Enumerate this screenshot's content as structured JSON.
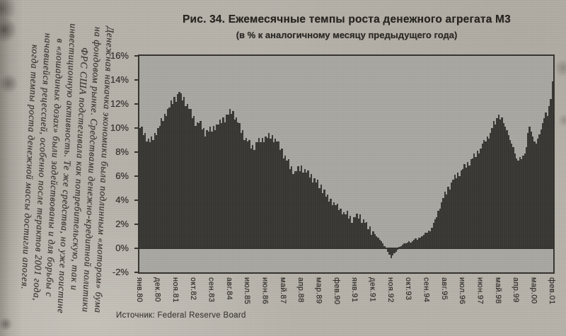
{
  "page": {
    "margin_note_lines": [
      "Денежная накачка экономики была подлинным «мотором» бума",
      "на фондовом рынке. Средствами денежно-кредитной политики",
      "ФРС США подстегивала как потребительскую, так и",
      "инвестиционную активность. Те же средства, но уже поистине",
      "в «лошадиных дозах» были задействованы и для борьбы с",
      "начавшейся рецессией, особенно после терактов 2001 года,",
      "когда темпы роста денежной массы достигли апогея."
    ],
    "source_note": "Источник: Federal Reserve Board"
  },
  "chart_data": {
    "type": "bar",
    "title": "Рис. 34. Ежемесячные темпы роста денежного агрегата М3",
    "subtitle": "(в % к аналогичному месяцу предыдущего года)",
    "source": "Federal Reserve Board",
    "x_range": [
      "янв.80",
      "фев.01"
    ],
    "months_total": 254,
    "ylim": [
      -2,
      16
    ],
    "grid": false,
    "legend": "none",
    "y_tick_labels": [
      "16%",
      "14%",
      "12%",
      "10%",
      "8%",
      "6%",
      "4%",
      "2%",
      "0%",
      "-2%"
    ],
    "x_tick_labels": [
      "янв.80",
      "дек.80",
      "ноя.81",
      "окт.82",
      "сен.83",
      "авг.84",
      "июл.85",
      "июн.86",
      "май.87",
      "апр.88",
      "мар.89",
      "фев.90",
      "янв.91",
      "дек.91",
      "ноя.92",
      "окт.93",
      "сен.94",
      "авг.95",
      "июл.96",
      "июн.97",
      "май.98",
      "апр.99",
      "мар.00",
      "фев.01"
    ],
    "x_tick_month_indices": [
      0,
      11,
      22,
      33,
      44,
      55,
      66,
      77,
      88,
      99,
      110,
      121,
      132,
      143,
      154,
      165,
      176,
      187,
      198,
      209,
      220,
      231,
      242,
      253
    ],
    "series": [
      {
        "name": "Темп роста M3, % к аналогичному месяцу предыдущего года",
        "values": [
          10.0,
          10.1,
          9.4,
          9.6,
          8.9,
          9.1,
          8.8,
          9.3,
          9.0,
          9.6,
          9.4,
          10.0,
          10.2,
          10.8,
          10.6,
          11.2,
          11.0,
          11.6,
          11.7,
          12.3,
          12.0,
          12.6,
          12.2,
          12.8,
          13.0,
          12.9,
          12.3,
          12.6,
          11.8,
          12.0,
          11.6,
          11.6,
          10.8,
          11.0,
          10.2,
          10.5,
          10.4,
          10.6,
          9.9,
          10.0,
          9.3,
          9.8,
          9.7,
          10.1,
          9.7,
          10.2,
          9.8,
          10.3,
          10.3,
          10.7,
          10.4,
          10.9,
          10.5,
          11.1,
          11.1,
          11.6,
          11.2,
          11.4,
          10.7,
          10.9,
          10.5,
          10.4,
          9.6,
          9.8,
          9.0,
          9.2,
          8.9,
          9.0,
          8.3,
          8.6,
          8.2,
          8.8,
          8.8,
          9.2,
          8.8,
          9.2,
          8.8,
          9.3,
          9.2,
          9.6,
          9.1,
          9.4,
          8.8,
          9.1,
          8.9,
          8.9,
          8.2,
          8.3,
          7.5,
          7.7,
          7.3,
          7.4,
          6.6,
          6.8,
          6.2,
          6.4,
          6.4,
          6.8,
          6.4,
          6.9,
          6.3,
          6.6,
          6.3,
          6.5,
          5.9,
          6.2,
          5.5,
          5.8,
          5.5,
          5.7,
          5.0,
          5.3,
          4.6,
          4.9,
          4.3,
          4.5,
          3.9,
          4.1,
          3.6,
          3.8,
          3.6,
          3.7,
          3.2,
          3.3,
          2.8,
          3.0,
          2.8,
          3.1,
          2.5,
          2.7,
          2.1,
          2.6,
          2.6,
          2.9,
          2.5,
          2.8,
          2.1,
          2.4,
          2.1,
          2.2,
          1.6,
          1.8,
          1.1,
          1.4,
          1.2,
          1.0,
          0.9,
          0.7,
          0.6,
          0.4,
          0.2,
          0.0,
          -0.3,
          -0.5,
          -0.8,
          -0.6,
          -0.4,
          -0.3,
          -0.1,
          0.1,
          0.2,
          0.3,
          0.4,
          0.4,
          0.5,
          0.6,
          0.5,
          0.6,
          0.7,
          0.8,
          0.7,
          0.9,
          0.9,
          1.0,
          1.1,
          1.3,
          1.3,
          1.5,
          1.4,
          1.7,
          2.1,
          2.4,
          2.6,
          3.1,
          3.3,
          3.8,
          4.2,
          4.7,
          4.5,
          5.1,
          4.9,
          5.5,
          5.7,
          6.1,
          5.8,
          6.3,
          6.0,
          6.5,
          6.6,
          7.0,
          6.7,
          7.2,
          6.9,
          7.4,
          7.5,
          7.9,
          7.6,
          8.1,
          7.9,
          8.3,
          8.7,
          9.0,
          8.9,
          9.3,
          9.1,
          9.6,
          10.0,
          10.6,
          10.3,
          10.8,
          11.1,
          10.7,
          10.9,
          10.4,
          10.1,
          9.8,
          9.4,
          9.0,
          8.7,
          8.4,
          7.9,
          7.5,
          7.3,
          7.6,
          7.4,
          7.7,
          7.9,
          8.4,
          9.6,
          10.1,
          9.7,
          9.3,
          8.9,
          8.7,
          9.1,
          9.5,
          9.9,
          10.4,
          10.8,
          11.3,
          11.0,
          11.8,
          12.4,
          13.9
        ]
      }
    ],
    "colors": {
      "page_bg": "#b6b2aa",
      "plot_bg": "#a9a7a1",
      "bar": "#383734",
      "frame": "#35332e",
      "text": "#2e2c29"
    }
  }
}
